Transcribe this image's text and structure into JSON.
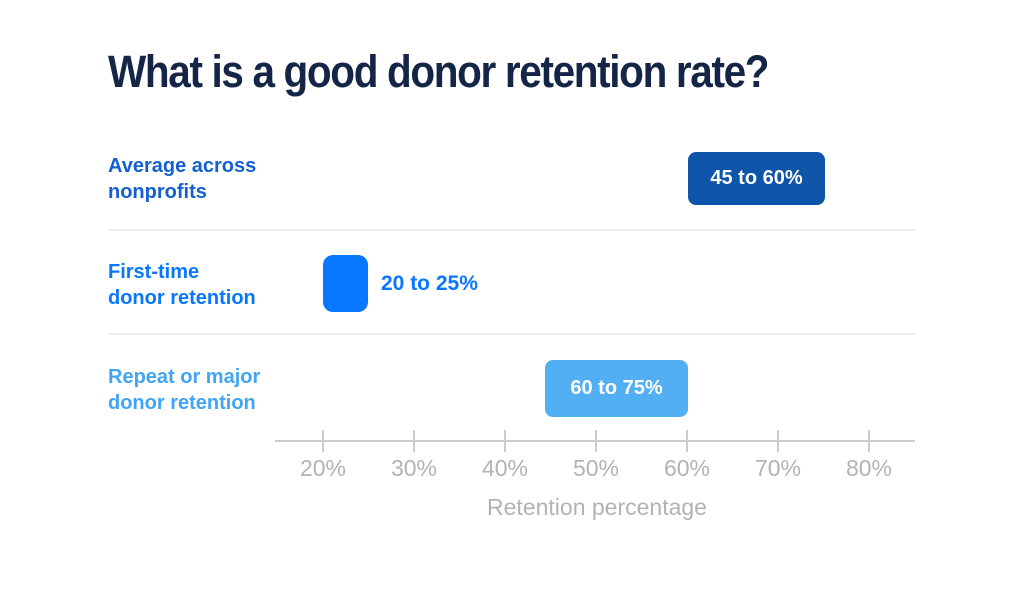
{
  "title": "What is a good donor retention rate?",
  "rows": [
    {
      "label": "Average across\nnonprofits",
      "value": "45 to 60%"
    },
    {
      "label": "First-time\ndonor retention",
      "value": "20 to 25%"
    },
    {
      "label": "Repeat or major\ndonor retention",
      "value": "60 to 75%"
    }
  ],
  "axis": {
    "label": "Retention percentage",
    "ticks": [
      "20%",
      "30%",
      "40%",
      "50%",
      "60%",
      "70%",
      "80%"
    ]
  },
  "colors": {
    "title_navy": "#152547",
    "row1_label_blue": "#1460d2",
    "row1_bar_blue": "#0e54a9",
    "row2_blue": "#0877ff",
    "row3_label_blue": "#41a5f4",
    "row3_bar_blue": "#52aff4",
    "axis_gray": "#cccccc",
    "axis_text_gray": "#b3b3b3",
    "separator_gray": "#ededed",
    "background": "#ffffff"
  },
  "chart_data": {
    "type": "bar",
    "subtype": "horizontal-range-bars",
    "title": "What is a good donor retention rate?",
    "categories": [
      "Average across nonprofits",
      "First-time donor retention",
      "Repeat or major donor retention"
    ],
    "ranges": [
      [
        45,
        60
      ],
      [
        20,
        25
      ],
      [
        60,
        75
      ]
    ],
    "range_labels": [
      "45 to 60%",
      "20 to 25%",
      "60 to 75%"
    ],
    "xlabel": "Retention percentage",
    "xtick_labels": [
      "20%",
      "30%",
      "40%",
      "50%",
      "60%",
      "70%",
      "80%"
    ],
    "xtick_values": [
      20,
      30,
      40,
      50,
      60,
      70,
      80
    ],
    "xlim": [
      15,
      85
    ],
    "grid": false,
    "legend": "none",
    "bar_colors": [
      "#0e54a9",
      "#0877ff",
      "#52aff4"
    ],
    "value_label_positions": [
      "inside",
      "outside-right",
      "inside"
    ]
  }
}
